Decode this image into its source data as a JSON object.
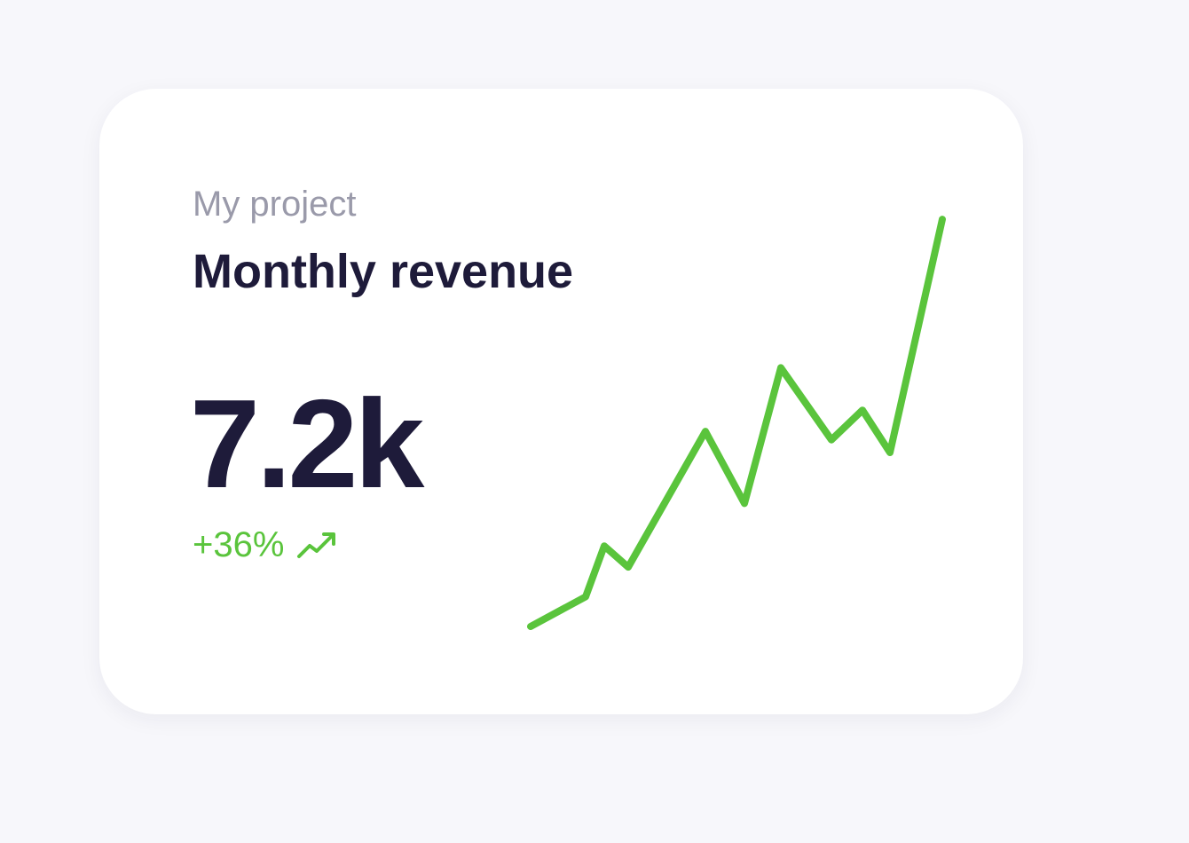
{
  "card": {
    "subtitle": "My project",
    "title": "Monthly revenue",
    "metric_value": "7.2k",
    "change": "+36%",
    "change_icon": "trending-up-icon"
  },
  "colors": {
    "background": "#f7f7fb",
    "card": "#ffffff",
    "title": "#1e1b3a",
    "subtitle": "#9a9aaa",
    "positive": "#5ac43c"
  },
  "chart_data": {
    "type": "line",
    "series": [
      {
        "values": [
          0,
          7,
          19,
          14,
          46,
          29,
          61,
          44,
          51,
          41,
          96
        ]
      }
    ],
    "axes_visible": false,
    "grid": false
  }
}
